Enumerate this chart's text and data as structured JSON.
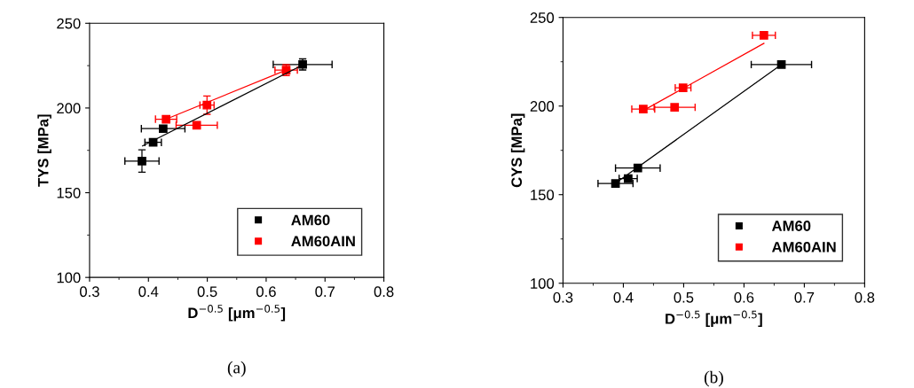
{
  "chart_data": [
    {
      "type": "scatter",
      "xlabel": "D$^{−0.5}$ [μm$^{−0.5}$]",
      "ylabel": "TYS [MPa]",
      "annotations": [
        "(a)"
      ],
      "xlim": [
        0.3,
        0.8
      ],
      "xticks": [
        0.3,
        0.4,
        0.5,
        0.6,
        0.7,
        0.8
      ],
      "ylim": [
        100,
        250
      ],
      "yticks": [
        100,
        150,
        200,
        250
      ],
      "legend": "bottom right",
      "grid": false,
      "series": [
        {
          "name": "AM60",
          "color": "#000000",
          "marker": "square",
          "x": [
            0.389,
            0.408,
            0.425,
            0.662
          ],
          "values": [
            168.7,
            179.7,
            187.8,
            225.7
          ],
          "errors": [
            6.6,
            1.5,
            1,
            3.3
          ],
          "xerrors": [
            0.029,
            0.014,
            0.037,
            0.05
          ]
        },
        {
          "name": "AM60AIN",
          "color": "#ff0000",
          "marker": "square",
          "x": [
            0.43,
            0.4995,
            0.482,
            0.634
          ],
          "values": [
            193.4,
            201.7,
            189.8,
            222.4
          ],
          "errors": [
            1,
            5.4,
            1,
            3.2
          ],
          "xerrors": [
            0.018,
            0.012,
            0.035,
            0.019
          ]
        },
        {
          "type": "line",
          "color": "#000000",
          "marker": "none",
          "x": [
            0.39,
            0.657
          ],
          "values": [
            177.6,
            224.5
          ]
        },
        {
          "type": "line",
          "color": "#ff0000",
          "marker": "none",
          "x": [
            0.43,
            0.634
          ],
          "values": [
            193.4,
            222.4
          ]
        }
      ]
    },
    {
      "type": "scatter",
      "xlabel": "D$^{−0.5}$ [μm$^{−0.5}$]",
      "ylabel": "CYS [MPa]",
      "annotations": [
        "(b)"
      ],
      "xlim": [
        0.3,
        0.8
      ],
      "xticks": [
        0.3,
        0.4,
        0.5,
        0.6,
        0.7,
        0.8
      ],
      "ylim": [
        100,
        250
      ],
      "yticks": [
        100,
        150,
        200,
        250
      ],
      "legend": "bottom right",
      "grid": false,
      "series": [
        {
          "name": "AM60",
          "color": "#000000",
          "marker": "square",
          "x": [
            0.387,
            0.408,
            0.424,
            0.662
          ],
          "values": [
            156.3,
            159.1,
            165.0,
            223.4
          ],
          "xerrors": [
            0.029,
            0.015,
            0.037,
            0.05
          ]
        },
        {
          "name": "AM60AIN",
          "color": "#ff0000",
          "marker": "square",
          "x": [
            0.433,
            0.499,
            0.485,
            0.633
          ],
          "values": [
            198.3,
            210.3,
            199.3,
            239.9
          ],
          "xerrors": [
            0.019,
            0.013,
            0.034,
            0.019
          ]
        },
        {
          "type": "line",
          "color": "#000000",
          "marker": "none",
          "x": [
            0.383,
            0.662
          ],
          "values": [
            155.5,
            223.4
          ]
        },
        {
          "type": "line",
          "color": "#ff0000",
          "marker": "none",
          "x": [
            0.4375,
            0.633
          ],
          "values": [
            198.3,
            235.4
          ]
        }
      ]
    }
  ]
}
